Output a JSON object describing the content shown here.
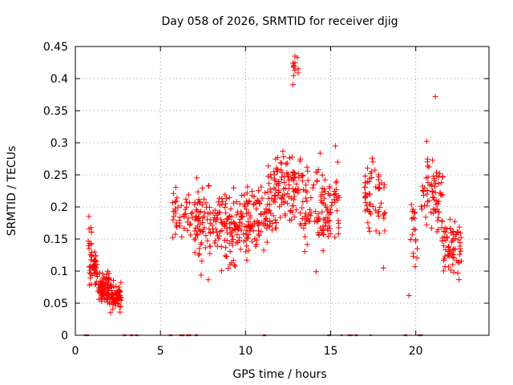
{
  "chart_data": {
    "type": "scatter",
    "title": "Day 058 of 2026, SRMTID for receiver djig",
    "xlabel": "GPS time / hours",
    "ylabel": "SRMTID / TECUs",
    "xlim": [
      0,
      24.3
    ],
    "ylim": [
      0,
      0.45
    ],
    "xticks": [
      0,
      5,
      10,
      15,
      20
    ],
    "yticks": [
      0,
      0.05,
      0.1,
      0.15,
      0.2,
      0.25,
      0.3,
      0.35,
      0.4,
      0.45
    ],
    "ytick_labels": [
      "0",
      "0.05",
      "0.1",
      "0.15",
      "0.2",
      "0.25",
      "0.3",
      "0.35",
      "0.4",
      "0.45"
    ],
    "grid": true,
    "marker": "+",
    "color": "#ff0000",
    "clusters": [
      {
        "x_start": 0.75,
        "x_end": 0.95,
        "y_center": 0.16,
        "y_spread": 0.02,
        "count": 10
      },
      {
        "x_start": 0.8,
        "x_end": 1.3,
        "y_center": 0.105,
        "y_spread": 0.025,
        "count": 50
      },
      {
        "x_start": 1.3,
        "x_end": 2.0,
        "y_center": 0.075,
        "y_spread": 0.02,
        "count": 80
      },
      {
        "x_start": 2.0,
        "x_end": 2.7,
        "y_center": 0.062,
        "y_spread": 0.018,
        "count": 70
      },
      {
        "x_start": 5.7,
        "x_end": 7.3,
        "y_center": 0.19,
        "y_spread": 0.04,
        "count": 60
      },
      {
        "x_start": 7.0,
        "x_end": 8.7,
        "y_center": 0.175,
        "y_spread": 0.055,
        "count": 90
      },
      {
        "x_start": 8.7,
        "x_end": 10.2,
        "y_center": 0.17,
        "y_spread": 0.05,
        "count": 100
      },
      {
        "x_start": 10.0,
        "x_end": 11.8,
        "y_center": 0.185,
        "y_spread": 0.04,
        "count": 90
      },
      {
        "x_start": 11.3,
        "x_end": 13.2,
        "y_center": 0.23,
        "y_spread": 0.05,
        "count": 110
      },
      {
        "x_start": 12.7,
        "x_end": 13.1,
        "y_center": 0.41,
        "y_spread": 0.02,
        "count": 10
      },
      {
        "x_start": 13.2,
        "x_end": 15.5,
        "y_center": 0.2,
        "y_spread": 0.055,
        "count": 130
      },
      {
        "x_start": 17.0,
        "x_end": 18.2,
        "y_center": 0.215,
        "y_spread": 0.045,
        "count": 60
      },
      {
        "x_start": 19.7,
        "x_end": 20.1,
        "y_center": 0.16,
        "y_spread": 0.05,
        "count": 20
      },
      {
        "x_start": 20.3,
        "x_end": 21.6,
        "y_center": 0.22,
        "y_spread": 0.05,
        "count": 70
      },
      {
        "x_start": 21.5,
        "x_end": 22.7,
        "y_center": 0.14,
        "y_spread": 0.035,
        "count": 70
      }
    ],
    "outliers": [
      {
        "x": 21.15,
        "y": 0.372
      },
      {
        "x": 19.6,
        "y": 0.062
      },
      {
        "x": 18.1,
        "y": 0.105
      },
      {
        "x": 12.9,
        "y": 0.435
      },
      {
        "x": 12.9,
        "y": 0.425
      }
    ],
    "zero_segments": [
      [
        0.5,
        0.8
      ],
      [
        2.8,
        3.0
      ],
      [
        3.2,
        3.4
      ],
      [
        3.5,
        3.7
      ],
      [
        5.5,
        5.7
      ],
      [
        6.1,
        6.4
      ],
      [
        6.5,
        6.8
      ],
      [
        7.0,
        7.2
      ],
      [
        11.0,
        11.2
      ],
      [
        14.8,
        15.0
      ],
      [
        15.6,
        15.7
      ],
      [
        16.0,
        16.3
      ],
      [
        16.4,
        16.6
      ],
      [
        17.3,
        17.4
      ],
      [
        19.3,
        19.5
      ],
      [
        20.1,
        20.4
      ]
    ]
  }
}
